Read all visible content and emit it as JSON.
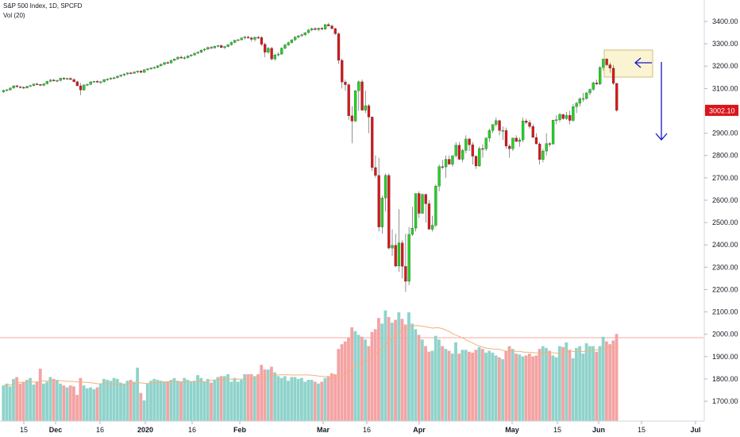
{
  "header": {
    "symbol_line": "S&P 500 Index, 1D, SPCFD",
    "volume_line": "Vol (20)"
  },
  "last_price": {
    "value": 3002.1,
    "label": "3002.10"
  },
  "colors": {
    "up": "#22d322",
    "down": "#d9161a",
    "vol_up": "#8fd3cb",
    "vol_down": "#f4a3a3",
    "vol_ma": "#f0b27a",
    "arrow": "#1515c8",
    "highlight_fill": "#fbf3cc",
    "highlight_stroke": "#c9b560",
    "price_line": "#f28b82"
  },
  "chart_data": {
    "type": "candlestick",
    "y_axis": {
      "ticks": [
        1700,
        1800,
        1900,
        2000,
        2100,
        2200,
        2300,
        2400,
        2500,
        2600,
        2700,
        2800,
        2900,
        3000,
        3100,
        3200,
        3300,
        3400
      ]
    },
    "x_axis": {
      "ticks": [
        "15",
        "Dec",
        "16",
        "2020",
        "16",
        "Feb",
        "Mar",
        "16",
        "Apr",
        "May",
        "15",
        "Jun",
        "15",
        "Jul"
      ]
    },
    "annotations": {
      "highlight_box": true,
      "left_arrow": true,
      "down_arrow": true
    },
    "candles": [
      [
        3085,
        3095,
        3080,
        3092,
        0.38
      ],
      [
        3092,
        3098,
        3088,
        3094,
        0.4
      ],
      [
        3094,
        3104,
        3090,
        3102,
        0.37
      ],
      [
        3102,
        3114,
        3099,
        3112,
        0.45
      ],
      [
        3112,
        3116,
        3104,
        3108,
        0.47
      ],
      [
        3108,
        3110,
        3100,
        3105,
        0.4
      ],
      [
        3105,
        3110,
        3098,
        3102,
        0.42
      ],
      [
        3102,
        3112,
        3100,
        3110,
        0.44
      ],
      [
        3110,
        3116,
        3106,
        3113,
        0.46
      ],
      [
        3113,
        3122,
        3110,
        3120,
        0.39
      ],
      [
        3120,
        3126,
        3115,
        3118,
        0.42
      ],
      [
        3118,
        3120,
        3110,
        3114,
        0.56
      ],
      [
        3114,
        3124,
        3110,
        3121,
        0.4
      ],
      [
        3121,
        3134,
        3118,
        3132,
        0.42
      ],
      [
        3132,
        3142,
        3128,
        3138,
        0.47
      ],
      [
        3138,
        3142,
        3130,
        3134,
        0.45
      ],
      [
        3134,
        3140,
        3128,
        3136,
        0.44
      ],
      [
        3136,
        3148,
        3132,
        3146,
        0.4
      ],
      [
        3146,
        3150,
        3140,
        3142,
        0.38
      ],
      [
        3142,
        3148,
        3138,
        3145,
        0.36
      ],
      [
        3145,
        3150,
        3138,
        3140,
        0.38
      ],
      [
        3140,
        3146,
        3128,
        3130,
        0.37
      ],
      [
        3130,
        3134,
        3110,
        3112,
        0.28
      ],
      [
        3112,
        3125,
        3070,
        3093,
        0.46
      ],
      [
        3093,
        3118,
        3090,
        3116,
        0.38
      ],
      [
        3116,
        3122,
        3110,
        3118,
        0.35
      ],
      [
        3118,
        3132,
        3115,
        3130,
        0.36
      ],
      [
        3130,
        3134,
        3125,
        3132,
        0.34
      ],
      [
        3132,
        3138,
        3126,
        3128,
        0.36
      ],
      [
        3128,
        3134,
        3120,
        3130,
        0.4
      ],
      [
        3130,
        3142,
        3126,
        3140,
        0.45
      ],
      [
        3140,
        3146,
        3134,
        3142,
        0.44
      ],
      [
        3142,
        3150,
        3138,
        3146,
        0.43
      ],
      [
        3146,
        3152,
        3140,
        3148,
        0.46
      ],
      [
        3148,
        3158,
        3145,
        3155,
        0.45
      ],
      [
        3155,
        3162,
        3150,
        3160,
        0.41
      ],
      [
        3160,
        3168,
        3155,
        3165,
        0.4
      ],
      [
        3165,
        3172,
        3160,
        3170,
        0.43
      ],
      [
        3170,
        3174,
        3164,
        3168,
        0.44
      ],
      [
        3168,
        3176,
        3165,
        3174,
        0.42
      ],
      [
        3174,
        3180,
        3168,
        3178,
        0.57
      ],
      [
        3178,
        3182,
        3170,
        3172,
        0.3
      ],
      [
        3172,
        3186,
        3170,
        3184,
        0.22
      ],
      [
        3184,
        3190,
        3178,
        3188,
        0.4
      ],
      [
        3188,
        3194,
        3184,
        3192,
        0.43
      ],
      [
        3192,
        3198,
        3188,
        3194,
        0.45
      ],
      [
        3194,
        3204,
        3190,
        3202,
        0.44
      ],
      [
        3202,
        3212,
        3198,
        3208,
        0.43
      ],
      [
        3208,
        3218,
        3204,
        3216,
        0.42
      ],
      [
        3216,
        3222,
        3210,
        3214,
        0.42
      ],
      [
        3214,
        3228,
        3212,
        3226,
        0.44
      ],
      [
        3226,
        3234,
        3222,
        3232,
        0.46
      ],
      [
        3232,
        3244,
        3228,
        3240,
        0.43
      ],
      [
        3240,
        3248,
        3234,
        3236,
        0.42
      ],
      [
        3236,
        3244,
        3230,
        3238,
        0.46
      ],
      [
        3238,
        3248,
        3234,
        3246,
        0.44
      ],
      [
        3246,
        3254,
        3242,
        3250,
        0.42
      ],
      [
        3250,
        3260,
        3246,
        3258,
        0.43
      ],
      [
        3258,
        3266,
        3254,
        3262,
        0.49
      ],
      [
        3262,
        3274,
        3258,
        3272,
        0.46
      ],
      [
        3272,
        3280,
        3266,
        3276,
        0.42
      ],
      [
        3276,
        3288,
        3272,
        3284,
        0.45
      ],
      [
        3284,
        3290,
        3278,
        3282,
        0.41
      ],
      [
        3282,
        3292,
        3278,
        3289,
        0.44
      ],
      [
        3289,
        3294,
        3284,
        3292,
        0.47
      ],
      [
        3292,
        3296,
        3280,
        3283,
        0.48
      ],
      [
        3283,
        3290,
        3276,
        3288,
        0.48
      ],
      [
        3288,
        3298,
        3284,
        3296,
        0.5
      ],
      [
        3296,
        3310,
        3292,
        3306,
        0.42
      ],
      [
        3306,
        3318,
        3302,
        3316,
        0.46
      ],
      [
        3316,
        3322,
        3312,
        3318,
        0.42
      ],
      [
        3318,
        3328,
        3314,
        3326,
        0.44
      ],
      [
        3326,
        3336,
        3320,
        3330,
        0.5
      ],
      [
        3330,
        3336,
        3322,
        3326,
        0.5
      ],
      [
        3326,
        3332,
        3310,
        3320,
        0.5
      ],
      [
        3320,
        3332,
        3310,
        3329,
        0.48
      ],
      [
        3329,
        3336,
        3322,
        3328,
        0.5
      ],
      [
        3328,
        3334,
        3290,
        3298,
        0.6
      ],
      [
        3298,
        3305,
        3240,
        3262,
        0.55
      ],
      [
        3262,
        3285,
        3255,
        3280,
        0.55
      ],
      [
        3280,
        3286,
        3225,
        3232,
        0.58
      ],
      [
        3232,
        3255,
        3225,
        3250,
        0.52
      ],
      [
        3250,
        3262,
        3244,
        3254,
        0.48
      ],
      [
        3254,
        3284,
        3250,
        3280,
        0.46
      ],
      [
        3280,
        3300,
        3275,
        3295,
        0.48
      ],
      [
        3295,
        3310,
        3290,
        3305,
        0.43
      ],
      [
        3305,
        3320,
        3302,
        3318,
        0.47
      ],
      [
        3318,
        3334,
        3312,
        3330,
        0.47
      ],
      [
        3330,
        3338,
        3324,
        3336,
        0.45
      ],
      [
        3336,
        3345,
        3330,
        3340,
        0.46
      ],
      [
        3340,
        3352,
        3334,
        3350,
        0.42
      ],
      [
        3350,
        3366,
        3346,
        3362,
        0.44
      ],
      [
        3362,
        3372,
        3356,
        3368,
        0.44
      ],
      [
        3368,
        3374,
        3360,
        3364,
        0.42
      ],
      [
        3364,
        3372,
        3356,
        3370,
        0.4
      ],
      [
        3370,
        3374,
        3362,
        3366,
        0.42
      ],
      [
        3366,
        3388,
        3362,
        3386,
        0.46
      ],
      [
        3386,
        3394,
        3378,
        3380,
        0.48
      ],
      [
        3380,
        3386,
        3364,
        3368,
        0.51
      ],
      [
        3368,
        3372,
        3340,
        3345,
        0.5
      ],
      [
        3345,
        3350,
        3210,
        3226,
        0.77
      ],
      [
        3226,
        3234,
        3100,
        3129,
        0.82
      ],
      [
        3129,
        3140,
        3090,
        3117,
        0.85
      ],
      [
        3117,
        3124,
        2960,
        2978,
        0.89
      ],
      [
        2978,
        3020,
        2855,
        2954,
        1.0
      ],
      [
        2954,
        3092,
        2950,
        3090,
        0.96
      ],
      [
        3090,
        3136,
        3000,
        3130,
        0.92
      ],
      [
        3130,
        3140,
        3000,
        3003,
        0.9
      ],
      [
        3003,
        3090,
        2990,
        3023,
        0.87
      ],
      [
        3023,
        3030,
        2900,
        2972,
        0.8
      ],
      [
        2972,
        2975,
        2730,
        2746,
        0.95
      ],
      [
        2746,
        2800,
        2700,
        2711,
        0.98
      ],
      [
        2711,
        2790,
        2460,
        2480,
        1.1
      ],
      [
        2480,
        2620,
        2450,
        2610,
        1.04
      ],
      [
        2610,
        2720,
        2550,
        2711,
        1.18
      ],
      [
        2711,
        2720,
        2380,
        2386,
        1.11
      ],
      [
        2386,
        2470,
        2350,
        2398,
        1.05
      ],
      [
        2398,
        2450,
        2300,
        2305,
        1.08
      ],
      [
        2305,
        2560,
        2280,
        2409,
        1.16
      ],
      [
        2409,
        2420,
        2250,
        2304,
        1.09
      ],
      [
        2304,
        2450,
        2190,
        2237,
        1.03
      ],
      [
        2237,
        2480,
        2220,
        2447,
        1.16
      ],
      [
        2447,
        2570,
        2440,
        2475,
        1.04
      ],
      [
        2475,
        2630,
        2460,
        2630,
        0.98
      ],
      [
        2630,
        2640,
        2520,
        2541,
        0.92
      ],
      [
        2541,
        2630,
        2540,
        2626,
        0.87
      ],
      [
        2626,
        2630,
        2500,
        2584,
        0.8
      ],
      [
        2584,
        2600,
        2470,
        2470,
        0.74
      ],
      [
        2470,
        2530,
        2460,
        2488,
        0.75
      ],
      [
        2488,
        2670,
        2480,
        2663,
        0.91
      ],
      [
        2663,
        2760,
        2640,
        2750,
        0.87
      ],
      [
        2750,
        2780,
        2740,
        2749,
        0.8
      ],
      [
        2749,
        2800,
        2700,
        2783,
        0.77
      ],
      [
        2783,
        2800,
        2760,
        2761,
        0.75
      ],
      [
        2761,
        2800,
        2750,
        2799,
        0.72
      ],
      [
        2799,
        2860,
        2790,
        2846,
        0.84
      ],
      [
        2846,
        2860,
        2780,
        2783,
        0.72
      ],
      [
        2783,
        2830,
        2770,
        2823,
        0.76
      ],
      [
        2823,
        2890,
        2810,
        2874,
        0.76
      ],
      [
        2874,
        2880,
        2820,
        2848,
        0.74
      ],
      [
        2848,
        2860,
        2760,
        2797,
        0.73
      ],
      [
        2797,
        2800,
        2740,
        2753,
        0.76
      ],
      [
        2753,
        2840,
        2750,
        2831,
        0.79
      ],
      [
        2831,
        2850,
        2790,
        2830,
        0.77
      ],
      [
        2830,
        2880,
        2820,
        2878,
        0.73
      ],
      [
        2878,
        2920,
        2860,
        2912,
        0.75
      ],
      [
        2912,
        2940,
        2900,
        2939,
        0.73
      ],
      [
        2939,
        2970,
        2930,
        2956,
        0.7
      ],
      [
        2956,
        2960,
        2890,
        2912,
        0.68
      ],
      [
        2912,
        2930,
        2870,
        2912,
        0.66
      ],
      [
        2912,
        2925,
        2830,
        2842,
        0.75
      ],
      [
        2842,
        2850,
        2790,
        2830,
        0.8
      ],
      [
        2830,
        2880,
        2820,
        2878,
        0.77
      ],
      [
        2878,
        2890,
        2860,
        2863,
        0.72
      ],
      [
        2863,
        2880,
        2840,
        2870,
        0.71
      ],
      [
        2870,
        2970,
        2860,
        2955,
        0.69
      ],
      [
        2955,
        2965,
        2940,
        2948,
        0.7
      ],
      [
        2948,
        2960,
        2920,
        2930,
        0.72
      ],
      [
        2930,
        2940,
        2880,
        2881,
        0.69
      ],
      [
        2881,
        2900,
        2850,
        2852,
        0.7
      ],
      [
        2852,
        2860,
        2760,
        2782,
        0.77
      ],
      [
        2782,
        2830,
        2770,
        2820,
        0.8
      ],
      [
        2820,
        2900,
        2800,
        2853,
        0.78
      ],
      [
        2853,
        2860,
        2840,
        2851,
        0.75
      ],
      [
        2851,
        2960,
        2850,
        2958,
        0.7
      ],
      [
        2958,
        2980,
        2940,
        2960,
        0.68
      ],
      [
        2960,
        2990,
        2950,
        2984,
        0.8
      ],
      [
        2984,
        2986,
        2960,
        2965,
        0.79
      ],
      [
        2965,
        2995,
        2960,
        2980,
        0.84
      ],
      [
        2980,
        3000,
        2940,
        2957,
        0.76
      ],
      [
        2957,
        3030,
        2950,
        3019,
        0.67
      ],
      [
        3019,
        3040,
        2990,
        3034,
        0.78
      ],
      [
        3034,
        3060,
        3020,
        3054,
        0.8
      ],
      [
        3054,
        3080,
        3040,
        3055,
        0.72
      ],
      [
        3055,
        3085,
        3050,
        3080,
        0.83
      ],
      [
        3080,
        3100,
        3070,
        3096,
        0.8
      ],
      [
        3096,
        3130,
        3090,
        3125,
        0.8
      ],
      [
        3125,
        3140,
        3115,
        3120,
        0.74
      ],
      [
        3120,
        3200,
        3115,
        3194,
        0.8
      ],
      [
        3194,
        3220,
        3180,
        3232,
        0.9
      ],
      [
        3232,
        3235,
        3200,
        3206,
        0.85
      ],
      [
        3206,
        3215,
        3170,
        3191,
        0.82
      ],
      [
        3191,
        3205,
        3115,
        3123,
        0.86
      ],
      [
        3123,
        3124,
        2996,
        3002,
        0.93
      ]
    ]
  }
}
